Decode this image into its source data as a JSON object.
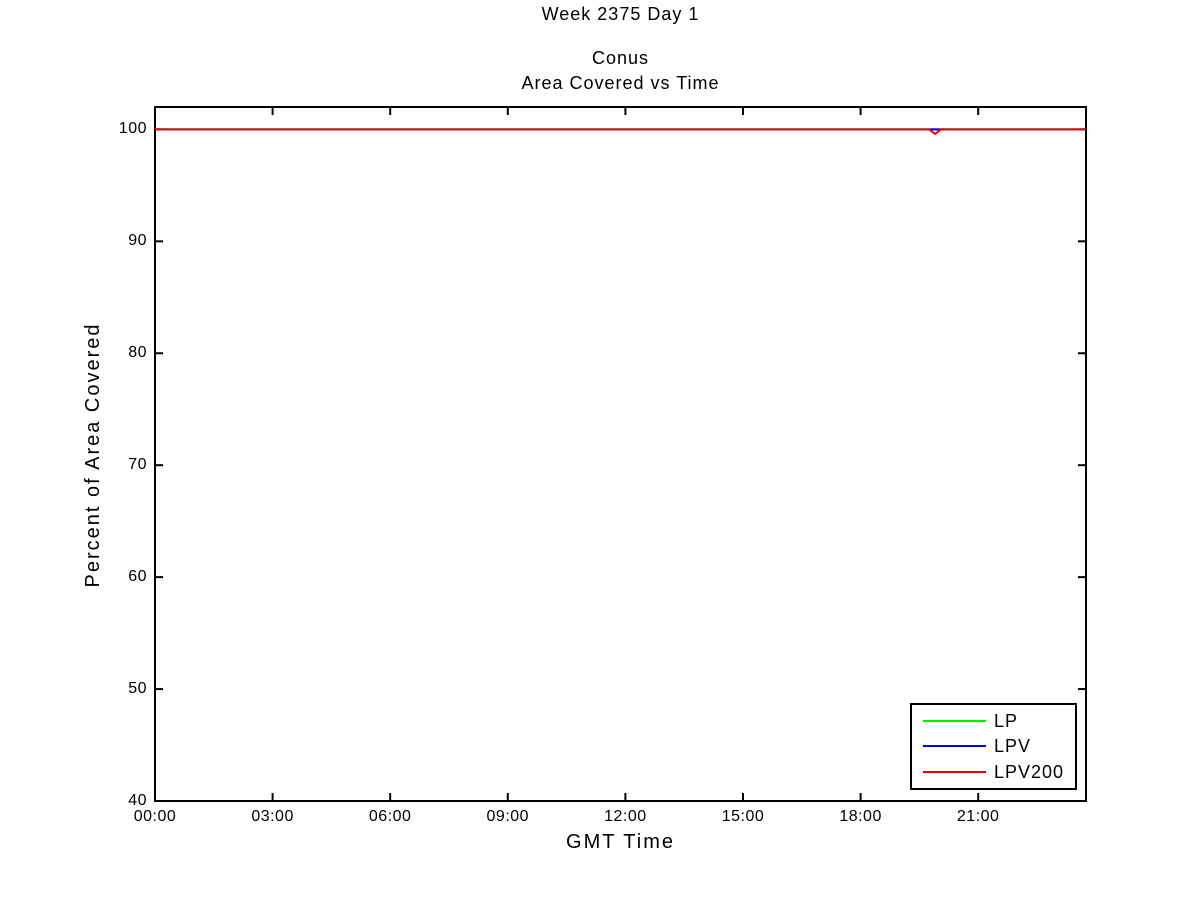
{
  "figure": {
    "title": "Week 2375 Day 1",
    "subtitle_line1": "Conus",
    "subtitle_line2": "Area Covered vs Time"
  },
  "axes": {
    "xlabel": "GMT Time",
    "ylabel": "Percent of Area Covered",
    "x_tick_labels": [
      "00:00",
      "03:00",
      "06:00",
      "09:00",
      "12:00",
      "15:00",
      "18:00",
      "21:00"
    ],
    "y_tick_labels": [
      "40",
      "50",
      "60",
      "70",
      "80",
      "90",
      "100"
    ],
    "axis_color": "#000000",
    "background_color": "#ffffff"
  },
  "legend": {
    "position": "bottom-right",
    "entries": [
      {
        "label": "LP",
        "color": "#00ee00"
      },
      {
        "label": "LPV",
        "color": "#0000ee"
      },
      {
        "label": "LPV200",
        "color": "#ee0000"
      }
    ]
  },
  "chart_data": {
    "type": "line",
    "title": "Week 2375 Day 1",
    "subtitle": [
      "Conus",
      "Area Covered vs Time"
    ],
    "xlabel": "GMT Time",
    "ylabel": "Percent of Area Covered",
    "x_unit": "hours_gmt",
    "xlim": [
      0,
      23.75
    ],
    "ylim": [
      40,
      102
    ],
    "x_ticks_hours": [
      0,
      3,
      6,
      9,
      12,
      15,
      18,
      21
    ],
    "y_ticks": [
      40,
      50,
      60,
      70,
      80,
      90,
      100
    ],
    "grid": false,
    "legend_position": "bottom-right",
    "series": [
      {
        "name": "LP",
        "color": "#00ee00",
        "points": [
          [
            0,
            100
          ],
          [
            23.75,
            100
          ]
        ]
      },
      {
        "name": "LPV",
        "color": "#0000ee",
        "points": [
          [
            0,
            100
          ],
          [
            23.75,
            100
          ]
        ]
      },
      {
        "name": "LPV200",
        "color": "#ee0000",
        "points": [
          [
            0,
            100
          ],
          [
            19.75,
            100
          ],
          [
            19.9,
            99.6
          ],
          [
            20.05,
            100
          ],
          [
            23.75,
            100
          ]
        ]
      }
    ]
  }
}
